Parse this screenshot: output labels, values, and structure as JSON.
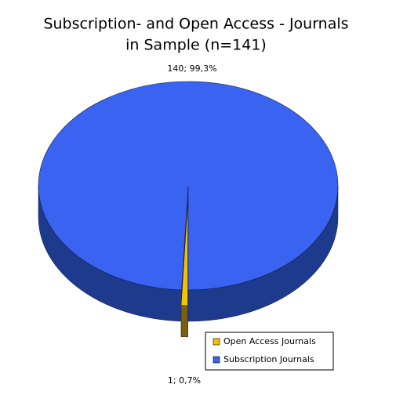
{
  "chart_data": {
    "type": "pie3d",
    "title": [
      "Subscription- and Open Access - Journals",
      "in Sample (n=141)"
    ],
    "categories": [
      "Open Access Journals",
      "Subscription Journals"
    ],
    "values": [
      1,
      140
    ],
    "value_labels": [
      "1; 0,7%",
      "140; 99,3%"
    ],
    "colors": [
      "#f2c200",
      "#3a63f2"
    ],
    "side_colors": [
      "#7a5f0c",
      "#1e3a8c"
    ],
    "legend": "bottom-right"
  }
}
